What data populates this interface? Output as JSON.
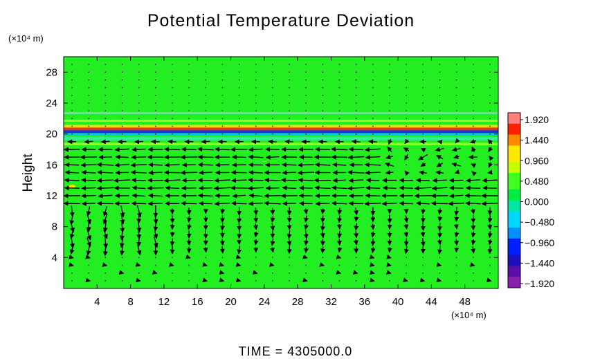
{
  "chart_data": {
    "type": "heatmap",
    "title": "Potential Temperature Deviation",
    "ylabel": "Height",
    "xunit": "(×10⁴ m)",
    "yunit": "(×10⁴ m)",
    "xlim": [
      0,
      52
    ],
    "ylim": [
      0,
      30
    ],
    "x_ticks": [
      4,
      8,
      12,
      16,
      20,
      24,
      28,
      32,
      36,
      40,
      44,
      48
    ],
    "y_ticks": [
      4,
      8,
      12,
      16,
      20,
      24,
      28
    ],
    "background_value": 0.0,
    "colorbar": {
      "ticks": [
        "1.920",
        "1.440",
        "0.960",
        "0.480",
        "0.000",
        "−0.480",
        "−0.960",
        "−1.440",
        "−1.920"
      ],
      "range": [
        -1.92,
        1.92
      ]
    },
    "annotations": {
      "time": "TIME = 4305000.0"
    },
    "features": {
      "inversion_band_height": 20.5,
      "wind_arrows": "horizontal wind vectors, strongest westward flow between heights 11 and 19"
    },
    "colors": {
      "background_field": "#22ee22",
      "arrows": "#000000",
      "positive_anomaly": "#ff2200",
      "negative_anomaly": "#1a1aff"
    }
  }
}
